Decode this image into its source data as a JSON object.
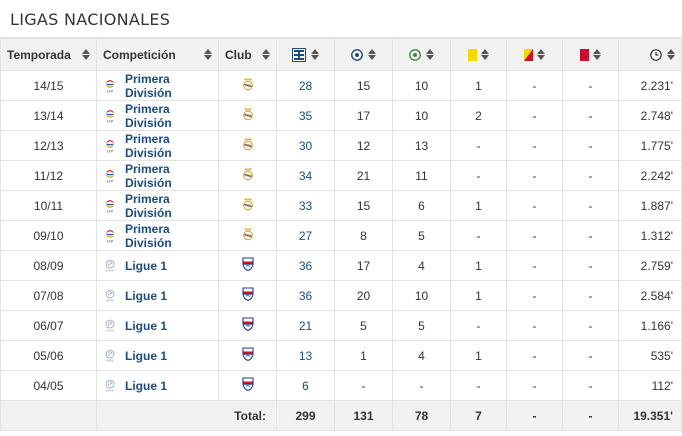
{
  "section_title": "LIGAS NACIONALES",
  "columns": {
    "season": "Temporada",
    "competition": "Competición",
    "club": "Club"
  },
  "column_icons": [
    "appearances-icon",
    "goals-icon",
    "assists-icon",
    "yellow-card-icon",
    "yellow-red-card-icon",
    "red-card-icon",
    "minutes-clock-icon"
  ],
  "rows": [
    {
      "season": "14/15",
      "competition": "Primera División",
      "comp_logo": "lfp-logo-icon",
      "club_logo": "real-madrid-crest-icon",
      "apps": "28",
      "goals": "15",
      "assists": "10",
      "yellow": "1",
      "yellowred": "-",
      "red": "-",
      "minutes": "2.231'"
    },
    {
      "season": "13/14",
      "competition": "Primera División",
      "comp_logo": "lfp-logo-icon",
      "club_logo": "real-madrid-crest-icon",
      "apps": "35",
      "goals": "17",
      "assists": "10",
      "yellow": "2",
      "yellowred": "-",
      "red": "-",
      "minutes": "2.748'"
    },
    {
      "season": "12/13",
      "competition": "Primera División",
      "comp_logo": "lfp-logo-icon",
      "club_logo": "real-madrid-crest-icon",
      "apps": "30",
      "goals": "12",
      "assists": "13",
      "yellow": "-",
      "yellowred": "-",
      "red": "-",
      "minutes": "1.775'"
    },
    {
      "season": "11/12",
      "competition": "Primera División",
      "comp_logo": "lfp-logo-icon",
      "club_logo": "real-madrid-crest-icon",
      "apps": "34",
      "goals": "21",
      "assists": "11",
      "yellow": "-",
      "yellowred": "-",
      "red": "-",
      "minutes": "2.242'"
    },
    {
      "season": "10/11",
      "competition": "Primera División",
      "comp_logo": "lfp-logo-icon",
      "club_logo": "real-madrid-crest-icon",
      "apps": "33",
      "goals": "15",
      "assists": "6",
      "yellow": "1",
      "yellowred": "-",
      "red": "-",
      "minutes": "1.887'"
    },
    {
      "season": "09/10",
      "competition": "Primera División",
      "comp_logo": "lfp-logo-icon",
      "club_logo": "real-madrid-crest-icon",
      "apps": "27",
      "goals": "8",
      "assists": "5",
      "yellow": "-",
      "yellowred": "-",
      "red": "-",
      "minutes": "1.312'"
    },
    {
      "season": "08/09",
      "competition": "Ligue 1",
      "comp_logo": "ligue1-logo-icon",
      "club_logo": "lyon-crest-icon",
      "apps": "36",
      "goals": "17",
      "assists": "4",
      "yellow": "1",
      "yellowred": "-",
      "red": "-",
      "minutes": "2.759'"
    },
    {
      "season": "07/08",
      "competition": "Ligue 1",
      "comp_logo": "ligue1-logo-icon",
      "club_logo": "lyon-crest-icon",
      "apps": "36",
      "goals": "20",
      "assists": "10",
      "yellow": "1",
      "yellowred": "-",
      "red": "-",
      "minutes": "2.584'"
    },
    {
      "season": "06/07",
      "competition": "Ligue 1",
      "comp_logo": "ligue1-logo-icon",
      "club_logo": "lyon-crest-icon",
      "apps": "21",
      "goals": "5",
      "assists": "5",
      "yellow": "-",
      "yellowred": "-",
      "red": "-",
      "minutes": "1.166'"
    },
    {
      "season": "05/06",
      "competition": "Ligue 1",
      "comp_logo": "ligue1-logo-icon",
      "club_logo": "lyon-crest-icon",
      "apps": "13",
      "goals": "1",
      "assists": "4",
      "yellow": "1",
      "yellowred": "-",
      "red": "-",
      "minutes": "535'"
    },
    {
      "season": "04/05",
      "competition": "Ligue 1",
      "comp_logo": "ligue1-logo-icon",
      "club_logo": "lyon-crest-icon",
      "apps": "6",
      "goals": "-",
      "assists": "-",
      "yellow": "-",
      "yellowred": "-",
      "red": "-",
      "minutes": "112'"
    }
  ],
  "totals": {
    "label": "Total:",
    "apps": "299",
    "goals": "131",
    "assists": "78",
    "yellow": "7",
    "yellowred": "-",
    "red": "-",
    "minutes": "19.351'"
  },
  "colors": {
    "link": "#1d4c7a",
    "header_bg": "#f2f2f2",
    "yellow_card": "#f5d800",
    "red_card": "#c8102e"
  }
}
